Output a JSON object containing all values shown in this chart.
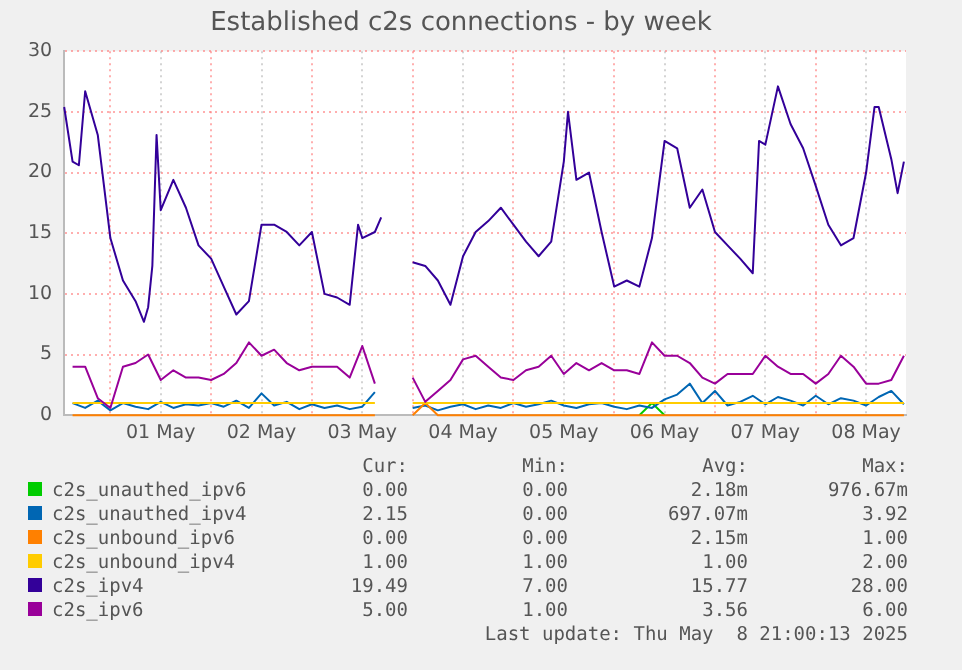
{
  "chart_data": {
    "type": "line",
    "title": "Established c2s connections - by week",
    "xlim": [
      "2025-04-30T13:00",
      "2025-05-08T21:30"
    ],
    "xticks": [
      {
        "value": "2025-05-01T00:00",
        "label": null
      },
      {
        "value": "2025-05-01T12:00",
        "label": "01 May"
      },
      {
        "value": "2025-05-02T00:00",
        "label": null
      },
      {
        "value": "2025-05-02T12:00",
        "label": "02 May"
      },
      {
        "value": "2025-05-03T00:00",
        "label": null
      },
      {
        "value": "2025-05-03T12:00",
        "label": "03 May"
      },
      {
        "value": "2025-05-04T00:00",
        "label": null
      },
      {
        "value": "2025-05-04T12:00",
        "label": "04 May"
      },
      {
        "value": "2025-05-05T00:00",
        "label": null
      },
      {
        "value": "2025-05-05T12:00",
        "label": "05 May"
      },
      {
        "value": "2025-05-06T00:00",
        "label": null
      },
      {
        "value": "2025-05-06T12:00",
        "label": "06 May"
      },
      {
        "value": "2025-05-07T00:00",
        "label": null
      },
      {
        "value": "2025-05-07T12:00",
        "label": "07 May"
      },
      {
        "value": "2025-05-08T00:00",
        "label": null
      },
      {
        "value": "2025-05-08T12:00",
        "label": "08 May"
      }
    ],
    "ylim": [
      0,
      30
    ],
    "yticks": [
      0,
      5,
      10,
      15,
      20,
      25,
      30
    ],
    "grid": true,
    "legend": "bottom",
    "x": [
      "2025-04-30T15:00",
      "2025-04-30T18:00",
      "2025-04-30T21:00",
      "2025-05-01T00:00",
      "2025-05-01T03:00",
      "2025-05-01T06:00",
      "2025-05-01T09:00",
      "2025-05-01T12:00",
      "2025-05-01T15:00",
      "2025-05-01T18:00",
      "2025-05-01T21:00",
      "2025-05-02T00:00",
      "2025-05-02T03:00",
      "2025-05-02T06:00",
      "2025-05-02T09:00",
      "2025-05-02T12:00",
      "2025-05-02T15:00",
      "2025-05-02T18:00",
      "2025-05-02T21:00",
      "2025-05-03T00:00",
      "2025-05-03T03:00",
      "2025-05-03T06:00",
      "2025-05-03T09:00",
      "2025-05-03T12:00",
      "2025-05-03T15:00",
      "2025-05-03T18:00",
      "2025-05-03T21:00",
      "2025-05-04T00:00",
      "2025-05-04T03:00",
      "2025-05-04T06:00",
      "2025-05-04T09:00",
      "2025-05-04T12:00",
      "2025-05-04T15:00",
      "2025-05-04T18:00",
      "2025-05-04T21:00",
      "2025-05-05T00:00",
      "2025-05-05T03:00",
      "2025-05-05T06:00",
      "2025-05-05T09:00",
      "2025-05-05T12:00",
      "2025-05-05T15:00",
      "2025-05-05T18:00",
      "2025-05-05T21:00",
      "2025-05-06T00:00",
      "2025-05-06T03:00",
      "2025-05-06T06:00",
      "2025-05-06T09:00",
      "2025-05-06T12:00",
      "2025-05-06T15:00",
      "2025-05-06T18:00",
      "2025-05-06T21:00",
      "2025-05-07T00:00",
      "2025-05-07T03:00",
      "2025-05-07T06:00",
      "2025-05-07T09:00",
      "2025-05-07T12:00",
      "2025-05-07T15:00",
      "2025-05-07T18:00",
      "2025-05-07T21:00",
      "2025-05-08T00:00",
      "2025-05-08T03:00",
      "2025-05-08T06:00",
      "2025-05-08T09:00",
      "2025-05-08T12:00",
      "2025-05-08T15:00",
      "2025-05-08T18:00",
      "2025-05-08T21:00"
    ],
    "series": [
      {
        "name": "c2s_unauthed_ipv6",
        "color": "#00cc00",
        "values": [
          null,
          null,
          null,
          null,
          null,
          null,
          null,
          null,
          null,
          null,
          null,
          null,
          null,
          null,
          null,
          null,
          null,
          null,
          null,
          null,
          null,
          null,
          null,
          null,
          null,
          null,
          null,
          null,
          null,
          null,
          null,
          null,
          null,
          null,
          null,
          null,
          null,
          null,
          null,
          null,
          null,
          null,
          null,
          null,
          null,
          0,
          1.0,
          0,
          null,
          null,
          null,
          null,
          null,
          null,
          null,
          null,
          null,
          null,
          null,
          null,
          null,
          null,
          null,
          null,
          null,
          null,
          null
        ]
      },
      {
        "name": "c2s_unauthed_ipv4",
        "color": "#0066b3",
        "values": [
          1.0,
          0.6,
          1.2,
          0.4,
          1.0,
          0.7,
          0.5,
          1.1,
          0.6,
          0.9,
          0.8,
          1.0,
          0.7,
          1.2,
          0.6,
          1.8,
          0.8,
          1.1,
          0.5,
          0.9,
          0.6,
          0.8,
          0.5,
          0.7,
          1.9,
          null,
          null,
          0.6,
          0.8,
          0.4,
          0.7,
          0.9,
          0.5,
          0.8,
          0.6,
          1.0,
          0.7,
          0.9,
          1.2,
          0.8,
          0.6,
          0.9,
          1.0,
          0.7,
          0.5,
          0.8,
          0.6,
          1.3,
          1.7,
          2.6,
          1.0,
          2.0,
          0.8,
          1.1,
          1.6,
          0.9,
          1.5,
          1.2,
          0.8,
          1.6,
          0.9,
          1.4,
          1.2,
          0.8,
          1.5,
          2.0,
          0.9
        ]
      },
      {
        "name": "c2s_unbound_ipv6",
        "color": "#ff8000",
        "values": [
          0,
          0,
          0,
          0,
          0,
          0,
          0,
          0,
          0,
          0,
          0,
          0,
          0,
          0,
          0,
          0,
          0,
          0,
          0,
          0,
          0,
          0,
          0,
          0,
          0,
          null,
          null,
          0,
          1.0,
          0,
          0,
          0,
          0,
          0,
          0,
          0,
          0,
          0,
          0,
          0,
          0,
          0,
          0,
          0,
          0,
          0,
          0,
          0,
          0,
          0,
          0,
          0,
          0,
          0,
          0,
          0,
          0,
          0,
          0,
          0,
          0,
          0,
          0,
          0,
          0,
          0,
          0
        ]
      },
      {
        "name": "c2s_unbound_ipv4",
        "color": "#ffcc00",
        "values": [
          1,
          1,
          1,
          1,
          1,
          1,
          1,
          1,
          1,
          1,
          1,
          1,
          1,
          1,
          1,
          1,
          1,
          1,
          1,
          1,
          1,
          1,
          1,
          1,
          1,
          null,
          null,
          1,
          1,
          1,
          1,
          1,
          1,
          1,
          1,
          1,
          1,
          1,
          1,
          1,
          1,
          1,
          1,
          1,
          1,
          1,
          1,
          1,
          1,
          1,
          1,
          1,
          1,
          1,
          1,
          1,
          1,
          1,
          1,
          1,
          1,
          1,
          1,
          1,
          1,
          1,
          1
        ]
      },
      {
        "name": "c2s_ipv4",
        "color": "#330099",
        "x": [
          "2025-04-30T13:00",
          "2025-04-30T15:00",
          "2025-04-30T16:30",
          "2025-04-30T18:00",
          "2025-04-30T21:00",
          "2025-05-01T00:00",
          "2025-05-01T03:00",
          "2025-05-01T06:00",
          "2025-05-01T08:00",
          "2025-05-01T09:00",
          "2025-05-01T10:00",
          "2025-05-01T11:00",
          "2025-05-01T12:00",
          "2025-05-01T15:00",
          "2025-05-01T18:00",
          "2025-05-01T21:00",
          "2025-05-02T00:00",
          "2025-05-02T03:00",
          "2025-05-02T06:00",
          "2025-05-02T09:00",
          "2025-05-02T12:00",
          "2025-05-02T15:00",
          "2025-05-02T18:00",
          "2025-05-02T21:00",
          "2025-05-03T00:00",
          "2025-05-03T03:00",
          "2025-05-03T06:00",
          "2025-05-03T09:00",
          "2025-05-03T11:00",
          "2025-05-03T12:00",
          "2025-05-03T15:00",
          "2025-05-03T16:30",
          "2025-05-03T20:00",
          "2025-05-04T00:00",
          "2025-05-04T03:00",
          "2025-05-04T06:00",
          "2025-05-04T09:00",
          "2025-05-04T12:00",
          "2025-05-04T15:00",
          "2025-05-04T18:00",
          "2025-05-04T21:00",
          "2025-05-05T00:00",
          "2025-05-05T03:00",
          "2025-05-05T06:00",
          "2025-05-05T09:00",
          "2025-05-05T12:00",
          "2025-05-05T13:00",
          "2025-05-05T15:00",
          "2025-05-05T18:00",
          "2025-05-05T21:00",
          "2025-05-06T00:00",
          "2025-05-06T03:00",
          "2025-05-06T06:00",
          "2025-05-06T09:00",
          "2025-05-06T12:00",
          "2025-05-06T15:00",
          "2025-05-06T18:00",
          "2025-05-06T21:00",
          "2025-05-07T00:00",
          "2025-05-07T03:00",
          "2025-05-07T06:00",
          "2025-05-07T09:00",
          "2025-05-07T10:30",
          "2025-05-07T12:00",
          "2025-05-07T15:00",
          "2025-05-07T18:00",
          "2025-05-07T21:00",
          "2025-05-08T00:00",
          "2025-05-08T03:00",
          "2025-05-08T06:00",
          "2025-05-08T09:00",
          "2025-05-08T12:00",
          "2025-05-08T14:00",
          "2025-05-08T15:00",
          "2025-05-08T18:00",
          "2025-05-08T19:30",
          "2025-05-08T21:00"
        ],
        "values": [
          25.4,
          20.9,
          20.6,
          26.7,
          23.1,
          14.6,
          11.1,
          9.4,
          7.7,
          8.9,
          12.3,
          23.1,
          16.9,
          19.4,
          17.1,
          14.0,
          12.9,
          10.6,
          8.3,
          9.4,
          15.7,
          15.7,
          15.1,
          14.0,
          15.1,
          10.0,
          9.7,
          9.1,
          15.7,
          14.6,
          15.1,
          16.3,
          null,
          12.6,
          12.3,
          11.1,
          9.1,
          13.1,
          15.1,
          16.0,
          17.1,
          15.7,
          14.3,
          13.1,
          14.3,
          20.9,
          25.0,
          19.4,
          20.0,
          15.1,
          10.6,
          11.1,
          10.6,
          14.6,
          22.6,
          22.0,
          17.1,
          18.6,
          15.1,
          14.0,
          12.9,
          11.7,
          22.6,
          22.3,
          27.1,
          24.0,
          22.0,
          18.9,
          15.7,
          14.0,
          14.6,
          20.0,
          25.4,
          25.4,
          21.1,
          18.3,
          20.9
        ]
      },
      {
        "name": "c2s_ipv6",
        "color": "#990099",
        "values": [
          4.0,
          4.0,
          1.4,
          0.6,
          4.0,
          4.3,
          5.0,
          2.9,
          3.7,
          3.1,
          3.1,
          2.9,
          3.4,
          4.3,
          6.0,
          4.9,
          5.4,
          4.3,
          3.7,
          4.0,
          4.0,
          4.0,
          3.1,
          5.7,
          2.6,
          null,
          null,
          3.1,
          1.1,
          2.0,
          2.9,
          4.6,
          4.9,
          4.0,
          3.1,
          2.9,
          3.7,
          4.0,
          4.9,
          3.4,
          4.3,
          3.7,
          4.3,
          3.7,
          3.7,
          3.4,
          6.0,
          4.9,
          4.9,
          4.3,
          3.1,
          2.6,
          3.4,
          3.4,
          3.4,
          4.9,
          4.0,
          3.4,
          3.4,
          2.6,
          3.4,
          4.9,
          4.0,
          2.6,
          2.6,
          2.9,
          4.9
        ]
      }
    ],
    "annotations": [
      "Cur:",
      "Min:",
      "Avg:",
      "Max:",
      "0.00",
      "0.00",
      "2.18m",
      "976.67m",
      "2.15",
      "0.00",
      "697.07m",
      "3.92",
      "0.00",
      "0.00",
      "2.15m",
      "1.00",
      "1.00",
      "1.00",
      "1.00",
      "2.00",
      "19.49",
      "7.00",
      "15.77",
      "28.00",
      "5.00",
      "1.00",
      "3.56",
      "6.00",
      "Last update: Thu May  8 21:00:13 2025"
    ]
  }
}
